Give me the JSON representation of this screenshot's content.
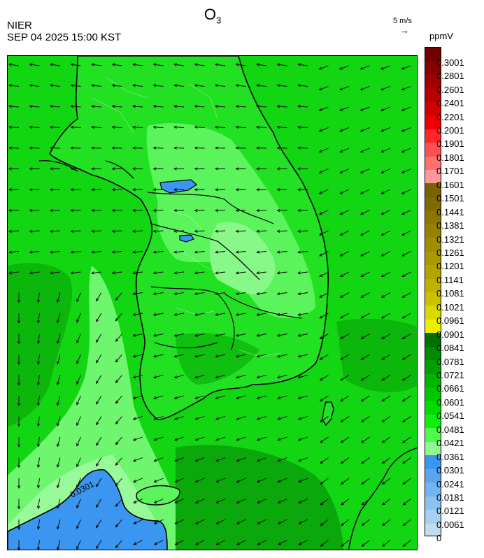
{
  "header": {
    "title_main": "O",
    "title_sub": "3",
    "agency": "NIER",
    "timestamp": "SEP 04 2025 15:00 KST",
    "unit": "ppmV",
    "ref_vector": {
      "speed_label": "5 m/s",
      "arrow": "→"
    }
  },
  "map": {
    "contour_label": "0.0301",
    "wind_direction": "from east-northeast; arrows point west/southwest over land, turning north over the southwest sea"
  },
  "colorbar": {
    "labels": [
      "0.3001",
      "0.2801",
      "0.2601",
      "0.2401",
      "0.2201",
      "0.2001",
      "0.1901",
      "0.1801",
      "0.1701",
      "0.1601",
      "0.1501",
      "0.1441",
      "0.1381",
      "0.1321",
      "0.1261",
      "0.1201",
      "0.1141",
      "0.1081",
      "0.1021",
      "0.0961",
      "0.0901",
      "0.0841",
      "0.0781",
      "0.0721",
      "0.0661",
      "0.0601",
      "0.0541",
      "0.0481",
      "0.0421",
      "0.0361",
      "0.0301",
      "0.0241",
      "0.0181",
      "0.0121",
      "0.0061",
      "0"
    ],
    "colors": [
      "#700000",
      "#880000",
      "#a00000",
      "#b80000",
      "#d00000",
      "#ee0000",
      "#ff2828",
      "#ff5050",
      "#ff7070",
      "#ff9898",
      "#7a6200",
      "#7f6a00",
      "#8a7600",
      "#968200",
      "#a08e00",
      "#aa9800",
      "#b4a400",
      "#c0b000",
      "#ccc000",
      "#dada00",
      "#eeee00",
      "#007000",
      "#008a00",
      "#00a000",
      "#00b400",
      "#00c800",
      "#00dc00",
      "#10ee10",
      "#50f850",
      "#90fa90",
      "#3a96f0",
      "#58a6f0",
      "#72b4f0",
      "#8cc2ef",
      "#a6d0ef",
      "#c0deef"
    ]
  },
  "colors": {
    "ocean_green": "#12d612",
    "land_light_green": "#5cf45c",
    "land_pale_green": "#88f888",
    "dark_green": "#0aa80a",
    "blue_low": "#3a96f0"
  },
  "icons": {
    "wind_arrows": "arrow-icon"
  }
}
